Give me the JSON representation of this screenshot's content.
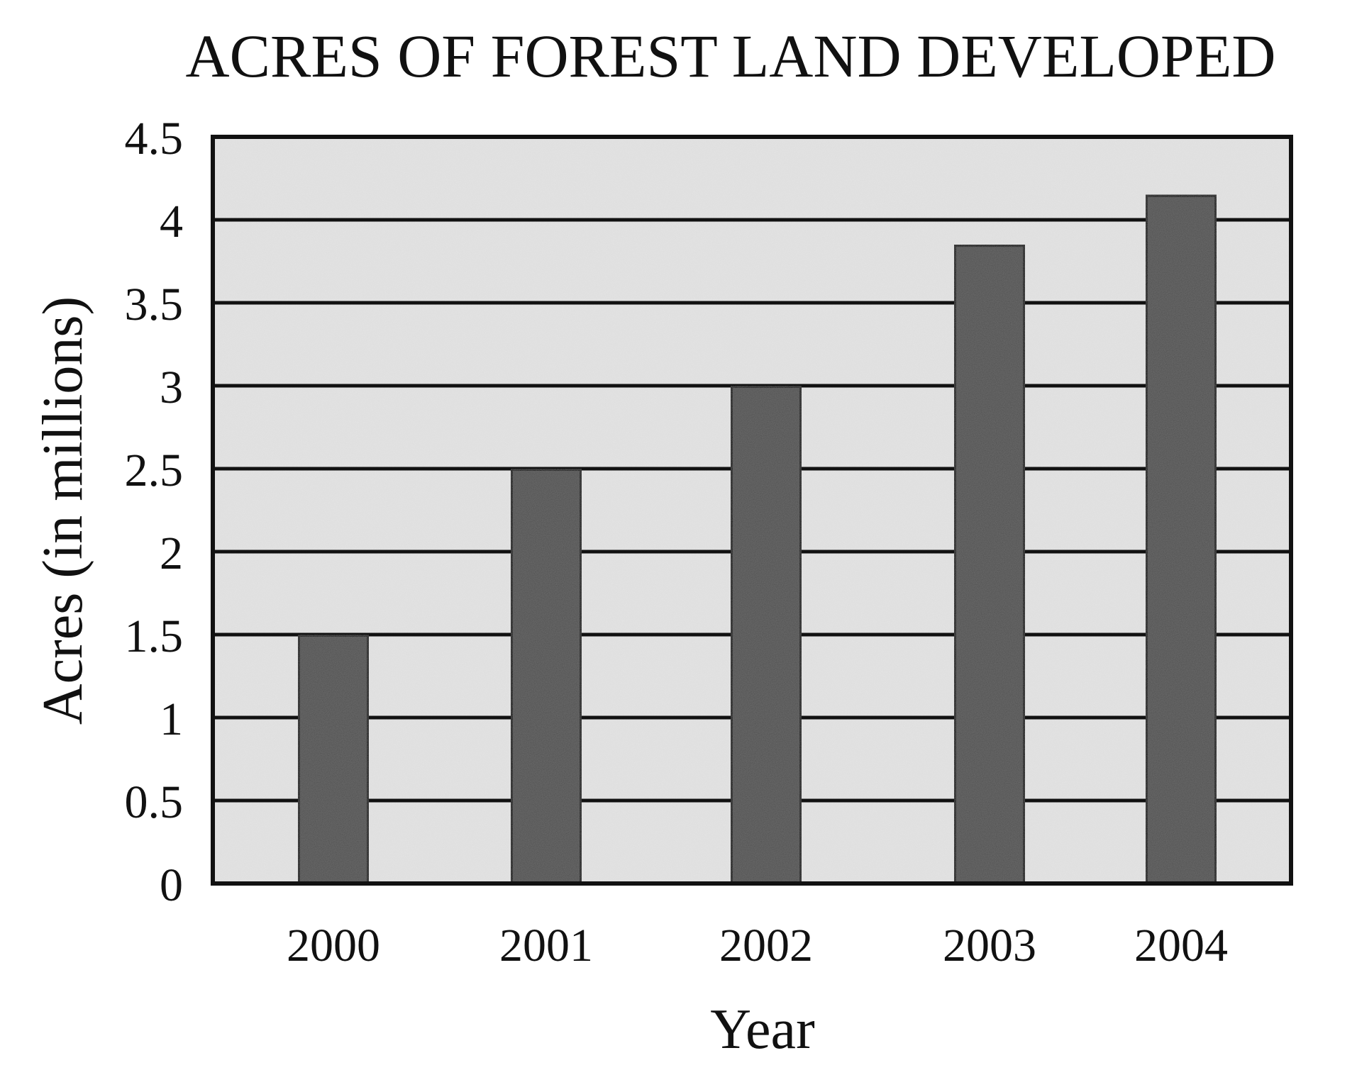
{
  "chart_data": {
    "type": "bar",
    "title": "ACRES OF FOREST LAND DEVELOPED",
    "xlabel": "Year",
    "ylabel": "Acres (in millions)",
    "categories": [
      "2000",
      "2001",
      "2002",
      "2003",
      "2004"
    ],
    "values": [
      1.5,
      2.5,
      3.0,
      3.85,
      4.15
    ],
    "ylim": [
      0,
      4.5
    ],
    "yticks": [
      "0",
      "0.5",
      "1",
      "1.5",
      "2",
      "2.5",
      "3",
      "3.5",
      "4",
      "4.5"
    ],
    "grid": true,
    "legend": "none",
    "colors": {
      "bar": "#4f4f4f",
      "plot_background": "#e4e4e4",
      "line": "#111111"
    }
  }
}
